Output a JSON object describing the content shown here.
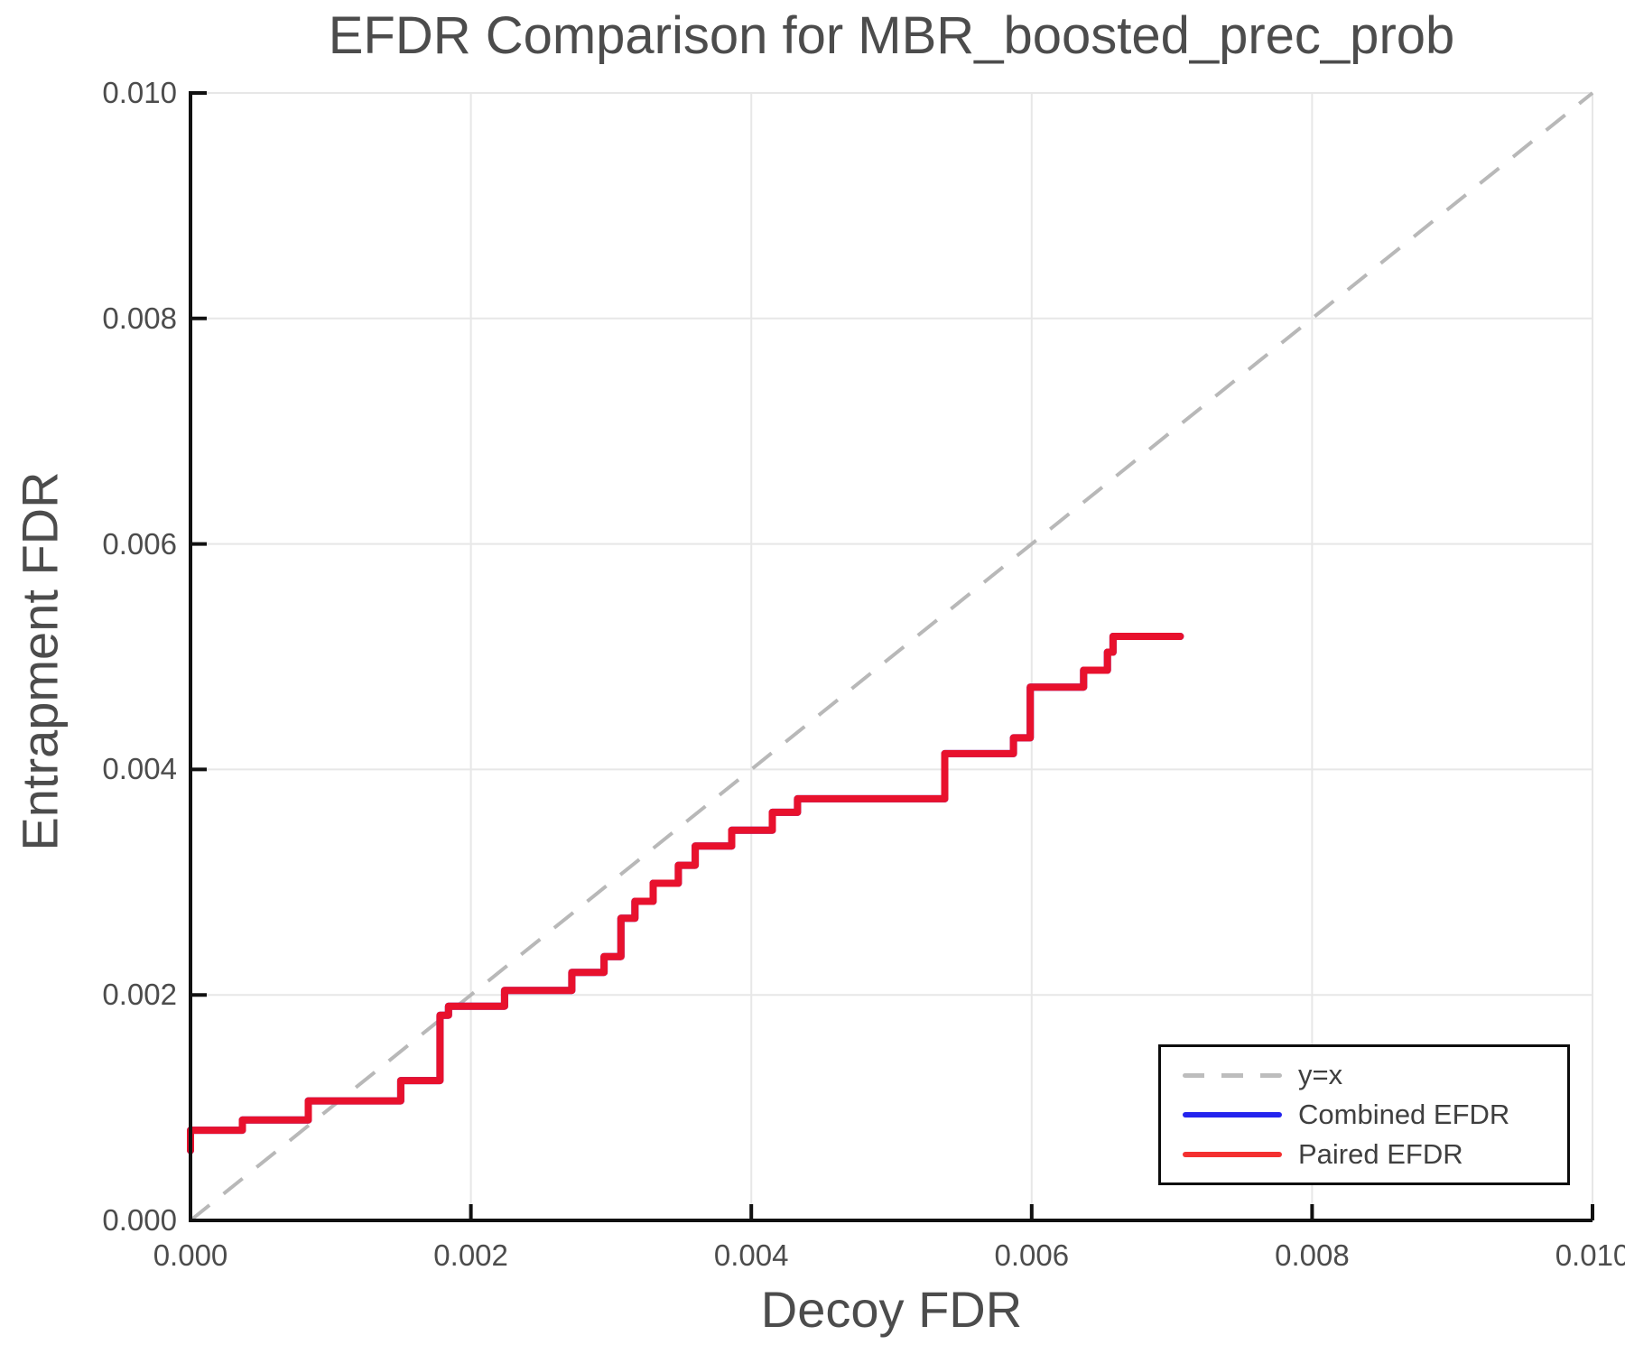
{
  "title": "EFDR Comparison for MBR_boosted_prec_prob",
  "colors": {
    "paired_line": "#e8112d",
    "combined_line": "#2424ee",
    "reference_line": "#b8b8b8",
    "gridline": "#e7e7e7",
    "spine": "#111111",
    "text": "#4c4c4c"
  },
  "legend": {
    "entries": [
      {
        "label": "y=x",
        "style": "dashed",
        "color": "#bdbdbd"
      },
      {
        "label": "Combined EFDR",
        "style": "solid",
        "color": "#2424ee"
      },
      {
        "label": "Paired EFDR",
        "style": "solid",
        "color": "#f43030"
      }
    ]
  },
  "chart_data": {
    "type": "line",
    "title": "EFDR Comparison for MBR_boosted_prec_prob",
    "xlabel": "Decoy FDR",
    "ylabel": "Entrapment FDR",
    "xlim": [
      0.0,
      0.01
    ],
    "ylim": [
      0.0,
      0.01
    ],
    "xticks": [
      0.0,
      0.002,
      0.004,
      0.006,
      0.008,
      0.01
    ],
    "yticks": [
      0.0,
      0.002,
      0.004,
      0.006,
      0.008,
      0.01
    ],
    "xtick_labels": [
      "0.000",
      "0.002",
      "0.004",
      "0.006",
      "0.008",
      "0.010"
    ],
    "ytick_labels": [
      "0.000",
      "0.002",
      "0.004",
      "0.006",
      "0.008",
      "0.010"
    ],
    "grid": true,
    "legend_position": "lower right",
    "reference_line": {
      "name": "y=x",
      "from": [
        0.0,
        0.0
      ],
      "to": [
        0.01,
        0.01
      ],
      "style": "dashed"
    },
    "series": [
      {
        "name": "Combined EFDR",
        "visible_in_plot": false,
        "note": "not visible in plot area; coincides with / hidden beneath the Paired EFDR line",
        "points": []
      },
      {
        "name": "Paired EFDR",
        "visible_in_plot": true,
        "points": [
          [
            0.0,
            0.00062
          ],
          [
            0.0,
            0.0008
          ],
          [
            0.00037,
            0.0008
          ],
          [
            0.00037,
            0.00089
          ],
          [
            0.00084,
            0.00089
          ],
          [
            0.00084,
            0.00106
          ],
          [
            0.0015,
            0.00106
          ],
          [
            0.0015,
            0.00124
          ],
          [
            0.00178,
            0.00124
          ],
          [
            0.00178,
            0.00182
          ],
          [
            0.00184,
            0.00182
          ],
          [
            0.00184,
            0.0019
          ],
          [
            0.00224,
            0.0019
          ],
          [
            0.00224,
            0.00204
          ],
          [
            0.00272,
            0.00204
          ],
          [
            0.00272,
            0.0022
          ],
          [
            0.00295,
            0.0022
          ],
          [
            0.00295,
            0.00234
          ],
          [
            0.00307,
            0.00234
          ],
          [
            0.00307,
            0.00268
          ],
          [
            0.00317,
            0.00268
          ],
          [
            0.00317,
            0.00283
          ],
          [
            0.0033,
            0.00283
          ],
          [
            0.0033,
            0.00299
          ],
          [
            0.00348,
            0.00299
          ],
          [
            0.00348,
            0.00315
          ],
          [
            0.0036,
            0.00315
          ],
          [
            0.0036,
            0.00332
          ],
          [
            0.00386,
            0.00332
          ],
          [
            0.00386,
            0.00346
          ],
          [
            0.00415,
            0.00346
          ],
          [
            0.00415,
            0.00362
          ],
          [
            0.00433,
            0.00362
          ],
          [
            0.00433,
            0.00374
          ],
          [
            0.00538,
            0.00374
          ],
          [
            0.00538,
            0.00414
          ],
          [
            0.00587,
            0.00414
          ],
          [
            0.00587,
            0.00428
          ],
          [
            0.00599,
            0.00428
          ],
          [
            0.00599,
            0.00473
          ],
          [
            0.00637,
            0.00473
          ],
          [
            0.00637,
            0.00488
          ],
          [
            0.00654,
            0.00488
          ],
          [
            0.00654,
            0.00504
          ],
          [
            0.00658,
            0.00504
          ],
          [
            0.00658,
            0.00518
          ],
          [
            0.00706,
            0.00518
          ]
        ]
      }
    ]
  }
}
